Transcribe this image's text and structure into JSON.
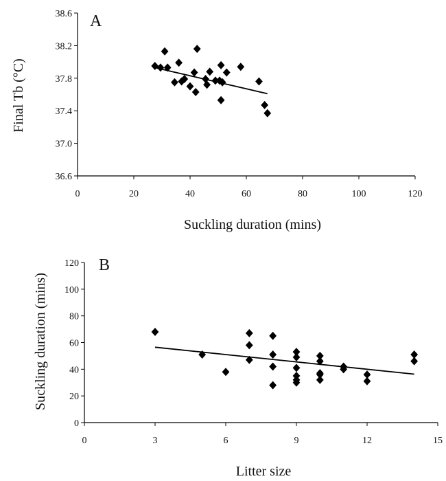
{
  "chart_data": [
    {
      "panel": "A",
      "type": "scatter",
      "xlabel": "Suckling duration (mins)",
      "ylabel": "Final Tb (°C)",
      "xlim": [
        0,
        120
      ],
      "ylim": [
        36.6,
        38.6
      ],
      "x_ticks": [
        "0",
        "20",
        "40",
        "60",
        "80",
        "100",
        "120"
      ],
      "y_ticks": [
        "36.6",
        "37.0",
        "37.4",
        "37.8",
        "38.2",
        "38.6"
      ],
      "x_tick_values": [
        0,
        20,
        40,
        60,
        80,
        100,
        120
      ],
      "y_tick_values": [
        36.6,
        37.0,
        37.4,
        37.8,
        38.2,
        38.6
      ],
      "points": [
        [
          27.5,
          37.95
        ],
        [
          29.5,
          37.93
        ],
        [
          31,
          38.13
        ],
        [
          32,
          37.93
        ],
        [
          34.5,
          37.75
        ],
        [
          36,
          37.99
        ],
        [
          37,
          37.76
        ],
        [
          38,
          37.79
        ],
        [
          40,
          37.7
        ],
        [
          41.5,
          37.87
        ],
        [
          42,
          37.63
        ],
        [
          42.5,
          38.16
        ],
        [
          45.5,
          37.79
        ],
        [
          46,
          37.72
        ],
        [
          47,
          37.88
        ],
        [
          49,
          37.77
        ],
        [
          50.5,
          37.77
        ],
        [
          51,
          37.96
        ],
        [
          51,
          37.53
        ],
        [
          51.5,
          37.75
        ],
        [
          53,
          37.87
        ],
        [
          58,
          37.94
        ],
        [
          64.5,
          37.76
        ],
        [
          66.5,
          37.47
        ],
        [
          67.5,
          37.37
        ]
      ],
      "trendline": [
        [
          27.5,
          37.93
        ],
        [
          67.5,
          37.61
        ]
      ]
    },
    {
      "panel": "B",
      "type": "scatter",
      "xlabel": "Litter size",
      "ylabel": "Suckling duration (mins)",
      "xlim": [
        0,
        15
      ],
      "ylim": [
        0,
        120
      ],
      "x_ticks": [
        "0",
        "3",
        "6",
        "9",
        "12",
        "15"
      ],
      "y_ticks": [
        "0",
        "20",
        "40",
        "60",
        "80",
        "100",
        "120"
      ],
      "x_tick_values": [
        0,
        3,
        6,
        9,
        12,
        15
      ],
      "y_tick_values": [
        0,
        20,
        40,
        60,
        80,
        100,
        120
      ],
      "points": [
        [
          3,
          68
        ],
        [
          5,
          51
        ],
        [
          6,
          38
        ],
        [
          7,
          67
        ],
        [
          7,
          58
        ],
        [
          7,
          47
        ],
        [
          8,
          65
        ],
        [
          8,
          51
        ],
        [
          8,
          42
        ],
        [
          8,
          28
        ],
        [
          9,
          53
        ],
        [
          9,
          49
        ],
        [
          9,
          41
        ],
        [
          9,
          35
        ],
        [
          9,
          32
        ],
        [
          9,
          30
        ],
        [
          10,
          50
        ],
        [
          10,
          46
        ],
        [
          10,
          37
        ],
        [
          10,
          36
        ],
        [
          10,
          32
        ],
        [
          11,
          42
        ],
        [
          11,
          40
        ],
        [
          12,
          36
        ],
        [
          12,
          31
        ],
        [
          14,
          51
        ],
        [
          14,
          46
        ]
      ],
      "trendline": [
        [
          3,
          56.5
        ],
        [
          14,
          36.3
        ]
      ]
    }
  ]
}
